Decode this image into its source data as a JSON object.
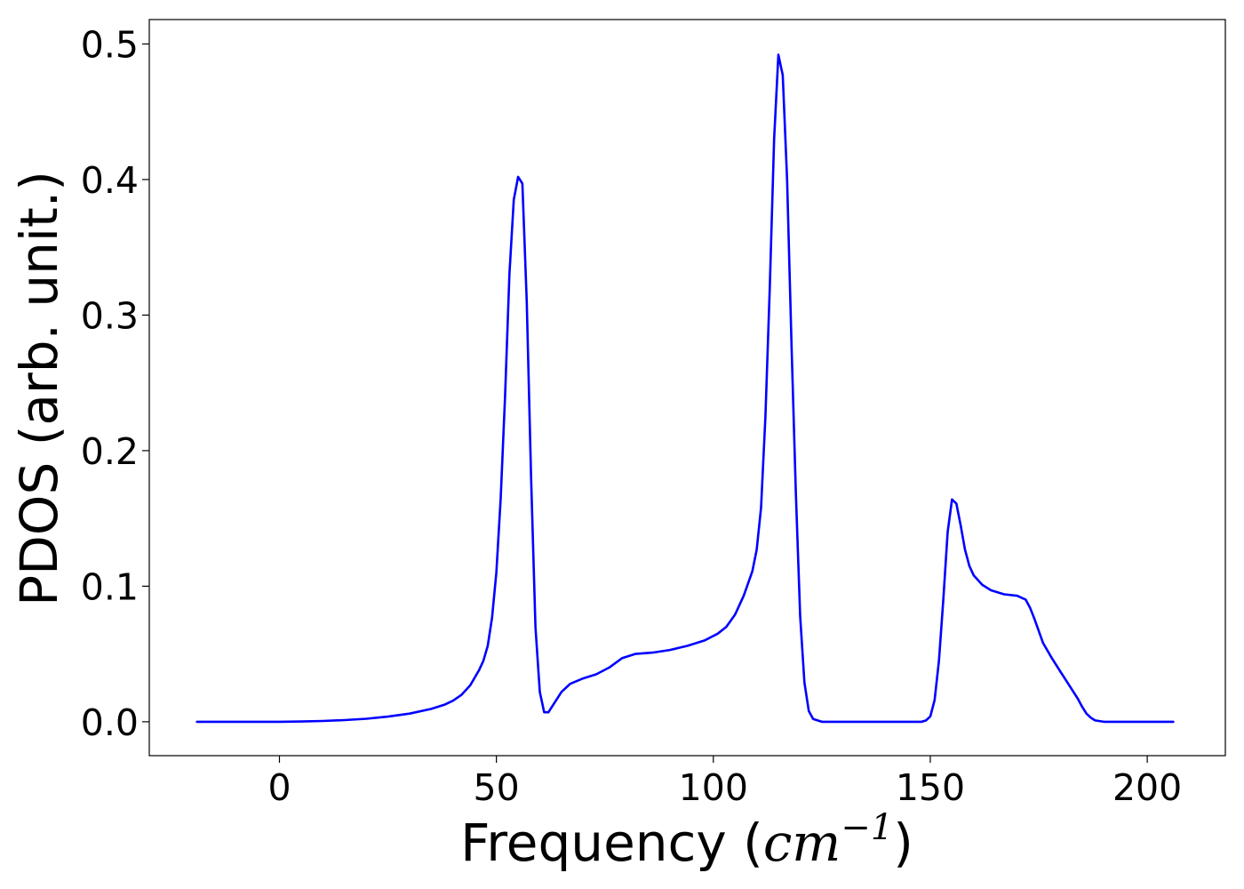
{
  "chart_data": {
    "type": "line",
    "title": "",
    "xlabel": "Frequency",
    "xlabel_math": "cm",
    "xlabel_exponent": "−1",
    "ylabel": "PDOS (arb. unit.)",
    "xlim": [
      -30,
      218
    ],
    "ylim": [
      -0.025,
      0.518
    ],
    "grid": false,
    "legend": "none",
    "x_ticks": [
      0,
      50,
      100,
      150,
      200
    ],
    "x_tick_labels": [
      "0",
      "50",
      "100",
      "150",
      "200"
    ],
    "y_ticks": [
      0.0,
      0.1,
      0.2,
      0.3,
      0.4,
      0.5
    ],
    "y_tick_labels": [
      "0.0",
      "0.1",
      "0.2",
      "0.3",
      "0.4",
      "0.5"
    ],
    "colors": {
      "series": "#0000ff",
      "axes": "#000000"
    },
    "series": [
      {
        "values": [
          [
            -19,
            0.0
          ],
          [
            0,
            0.0
          ],
          [
            5,
            0.0002
          ],
          [
            10,
            0.0006
          ],
          [
            15,
            0.0012
          ],
          [
            20,
            0.0022
          ],
          [
            25,
            0.0038
          ],
          [
            30,
            0.006
          ],
          [
            35,
            0.0095
          ],
          [
            38,
            0.0125
          ],
          [
            40,
            0.0155
          ],
          [
            42,
            0.02
          ],
          [
            44,
            0.027
          ],
          [
            46,
            0.038
          ],
          [
            47,
            0.045
          ],
          [
            48,
            0.056
          ],
          [
            49,
            0.077
          ],
          [
            50,
            0.11
          ],
          [
            51,
            0.165
          ],
          [
            52,
            0.24
          ],
          [
            53,
            0.33
          ],
          [
            54,
            0.385
          ],
          [
            55,
            0.402
          ],
          [
            56,
            0.397
          ],
          [
            57,
            0.31
          ],
          [
            58,
            0.18
          ],
          [
            59,
            0.07
          ],
          [
            60,
            0.022
          ],
          [
            61,
            0.007
          ],
          [
            62,
            0.007
          ],
          [
            63,
            0.012
          ],
          [
            65,
            0.022
          ],
          [
            67,
            0.028
          ],
          [
            70,
            0.032
          ],
          [
            73,
            0.035
          ],
          [
            76,
            0.04
          ],
          [
            79,
            0.047
          ],
          [
            82,
            0.05
          ],
          [
            86,
            0.051
          ],
          [
            90,
            0.053
          ],
          [
            94,
            0.056
          ],
          [
            98,
            0.06
          ],
          [
            101,
            0.065
          ],
          [
            103,
            0.07
          ],
          [
            105,
            0.079
          ],
          [
            107,
            0.093
          ],
          [
            109,
            0.111
          ],
          [
            110,
            0.127
          ],
          [
            111,
            0.158
          ],
          [
            112,
            0.225
          ],
          [
            113,
            0.32
          ],
          [
            114,
            0.43
          ],
          [
            115,
            0.492
          ],
          [
            116,
            0.477
          ],
          [
            117,
            0.4
          ],
          [
            118,
            0.28
          ],
          [
            119,
            0.17
          ],
          [
            120,
            0.078
          ],
          [
            121,
            0.029
          ],
          [
            122,
            0.008
          ],
          [
            123,
            0.002
          ],
          [
            125,
            0.0
          ],
          [
            130,
            0.0
          ],
          [
            140,
            0.0
          ],
          [
            148,
            0.0
          ],
          [
            149,
            0.001
          ],
          [
            150,
            0.004
          ],
          [
            151,
            0.016
          ],
          [
            152,
            0.045
          ],
          [
            153,
            0.09
          ],
          [
            154,
            0.14
          ],
          [
            155,
            0.164
          ],
          [
            156,
            0.161
          ],
          [
            157,
            0.145
          ],
          [
            158,
            0.127
          ],
          [
            159,
            0.115
          ],
          [
            160,
            0.108
          ],
          [
            162,
            0.101
          ],
          [
            164,
            0.097
          ],
          [
            167,
            0.094
          ],
          [
            170,
            0.093
          ],
          [
            172,
            0.09
          ],
          [
            173,
            0.084
          ],
          [
            174,
            0.076
          ],
          [
            175,
            0.067
          ],
          [
            176,
            0.058
          ],
          [
            178,
            0.047
          ],
          [
            180,
            0.037
          ],
          [
            182,
            0.027
          ],
          [
            184,
            0.017
          ],
          [
            185,
            0.011
          ],
          [
            186,
            0.006
          ],
          [
            187,
            0.003
          ],
          [
            188,
            0.001
          ],
          [
            190,
            0.0
          ],
          [
            200,
            0.0
          ],
          [
            206,
            0.0
          ]
        ]
      }
    ]
  }
}
